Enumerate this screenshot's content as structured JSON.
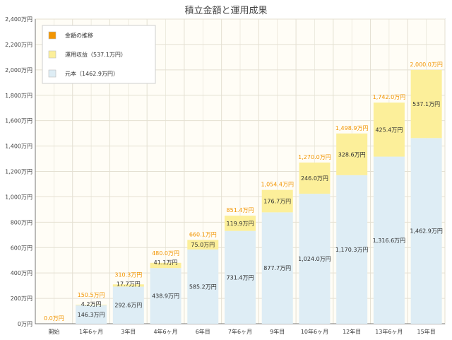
{
  "chart_data": {
    "type": "bar",
    "stacked": true,
    "title": "積立金額と運用成果",
    "categories": [
      "開始",
      "1年6ヶ月",
      "3年目",
      "4年6ヶ月",
      "6年目",
      "7年6ヶ月",
      "9年目",
      "10年6ヶ月",
      "12年目",
      "13年6ヶ月",
      "15年目"
    ],
    "series": [
      {
        "name": "元本（1462.9万円）",
        "color": "#deedf5",
        "values": [
          0,
          146.3,
          292.6,
          438.9,
          585.2,
          731.4,
          877.7,
          1024.0,
          1170.3,
          1316.6,
          1462.9
        ],
        "labels": [
          "",
          "146.3万円",
          "292.6万円",
          "438.9万円",
          "585.2万円",
          "731.4万円",
          "877.7万円",
          "1,024.0万円",
          "1,170.3万円",
          "1,316.6万円",
          "1,462.9万円"
        ]
      },
      {
        "name": "運用収益（537.1万円）",
        "color": "#fcef9a",
        "values": [
          0,
          4.2,
          17.7,
          41.1,
          75.0,
          119.9,
          176.7,
          246.0,
          328.6,
          425.4,
          537.1
        ],
        "labels": [
          "",
          "4.2万円",
          "17.7万円",
          "41.1万円",
          "75.0万円",
          "119.9万円",
          "176.7万円",
          "246.0万円",
          "328.6万円",
          "425.4万円",
          "537.1万円"
        ]
      }
    ],
    "totals": {
      "name": "金額の推移",
      "color": "#f29500",
      "values": [
        0,
        150.5,
        310.3,
        480.0,
        660.1,
        851.4,
        1054.4,
        1270.0,
        1498.9,
        1742.0,
        2000.0
      ],
      "labels": [
        "0.0万円",
        "150.5万円",
        "310.3万円",
        "480.0万円",
        "660.1万円",
        "851.4万円",
        "1,054.4万円",
        "1,270.0万円",
        "1,498.9万円",
        "1,742.0万円",
        "2,000.0万円"
      ]
    },
    "ylim": [
      0,
      2400
    ],
    "yticks": [
      0,
      200,
      400,
      600,
      800,
      1000,
      1200,
      1400,
      1600,
      1800,
      2000,
      2200,
      2400
    ],
    "ytick_labels": [
      "0万円",
      "200万円",
      "400万円",
      "600万円",
      "800万円",
      "1,000万円",
      "1,200万円",
      "1,400万円",
      "1,600万円",
      "1,800万円",
      "2,000万円",
      "2,200万円",
      "2,400万円"
    ],
    "grid": true,
    "legend_position": "top-left",
    "legend": [
      {
        "label": "金額の推移",
        "color": "#f29500"
      },
      {
        "label": "運用収益（537.1万円）",
        "color": "#fcef9a"
      },
      {
        "label": "元本（1462.9万円）",
        "color": "#deedf5"
      }
    ],
    "colors": {
      "plot_background": "#fffdf6",
      "grid": "#e4e0d2",
      "axis": "#999999"
    }
  }
}
